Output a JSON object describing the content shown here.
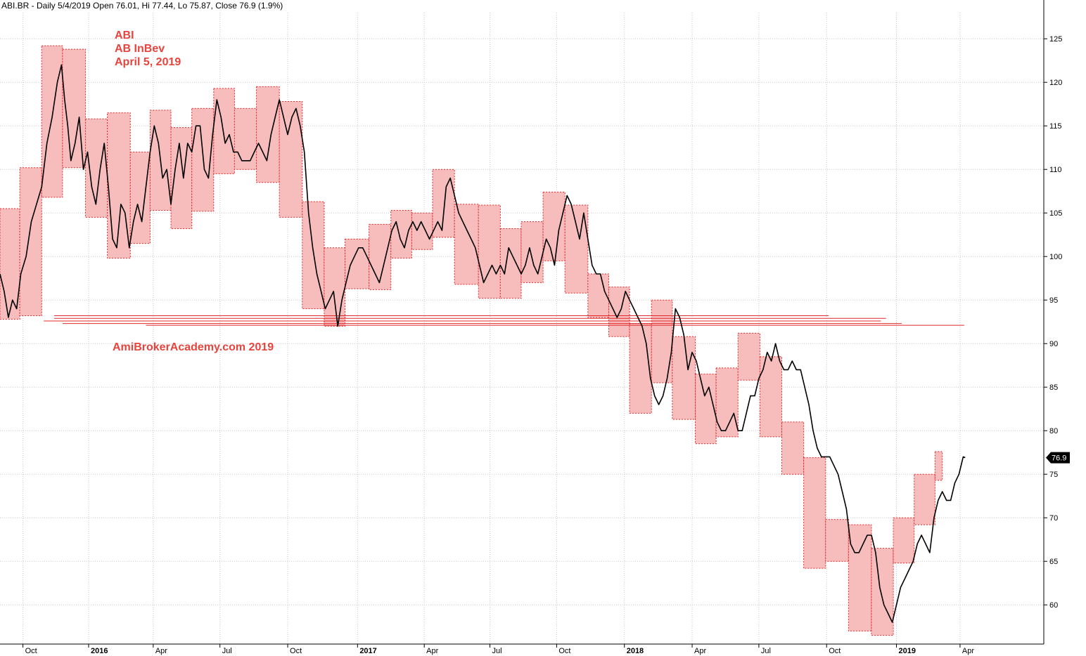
{
  "header": {
    "text": "ABI.BR - Daily 5/4/2019 Open 76.01, Hi 77.44, Lo 75.87, Close 76.9 (1.9%)"
  },
  "annotations": {
    "symbol": "ABI",
    "company": "AB InBev",
    "date": "April 5, 2019",
    "watermark": "AmiBrokerAcademy.com  2019"
  },
  "colors": {
    "box_fill": "#f7bcbc",
    "box_border": "#e0282a",
    "support_line": "#e0282a",
    "price": "#000000",
    "grid": "#c8c8c8"
  },
  "chart_data": {
    "type": "line",
    "title": "ABI.BR - Daily 5/4/2019 Open 76.01, Hi 77.44, Lo 75.87, Close 76.9 (1.9%)",
    "ylim": [
      55.5,
      128
    ],
    "xlim": [
      0,
      1000
    ],
    "y_ticks": [
      125,
      120,
      115,
      110,
      105,
      100,
      95,
      90,
      85,
      80,
      75,
      70,
      65,
      60
    ],
    "x_ticks": [
      {
        "label": "Oct",
        "x": 22,
        "year": false
      },
      {
        "label": "2016",
        "x": 85,
        "year": true
      },
      {
        "label": "Apr",
        "x": 147,
        "year": false
      },
      {
        "label": "Jul",
        "x": 211,
        "year": false
      },
      {
        "label": "Oct",
        "x": 276,
        "year": false
      },
      {
        "label": "2017",
        "x": 343,
        "year": true
      },
      {
        "label": "Apr",
        "x": 407,
        "year": false
      },
      {
        "label": "Jul",
        "x": 470,
        "year": false
      },
      {
        "label": "Oct",
        "x": 534,
        "year": false
      },
      {
        "label": "2018",
        "x": 599,
        "year": true
      },
      {
        "label": "Apr",
        "x": 664,
        "year": false
      },
      {
        "label": "Jul",
        "x": 728,
        "year": false
      },
      {
        "label": "Oct",
        "x": 793,
        "year": false
      },
      {
        "label": "2019",
        "x": 860,
        "year": true
      },
      {
        "label": "Apr",
        "x": 921,
        "year": false
      }
    ],
    "last_value": 76.9,
    "last_value_label": "76.9",
    "close": [
      [
        0,
        98
      ],
      [
        4,
        96
      ],
      [
        8,
        93
      ],
      [
        12,
        95
      ],
      [
        16,
        94
      ],
      [
        20,
        98
      ],
      [
        25,
        100
      ],
      [
        30,
        104
      ],
      [
        35,
        106
      ],
      [
        40,
        108
      ],
      [
        45,
        113
      ],
      [
        50,
        116
      ],
      [
        55,
        120
      ],
      [
        59,
        122
      ],
      [
        62,
        118
      ],
      [
        65,
        115
      ],
      [
        68,
        111
      ],
      [
        72,
        113
      ],
      [
        76,
        116
      ],
      [
        80,
        110
      ],
      [
        84,
        112
      ],
      [
        88,
        108
      ],
      [
        92,
        106
      ],
      [
        96,
        110
      ],
      [
        100,
        113
      ],
      [
        104,
        108
      ],
      [
        108,
        102
      ],
      [
        112,
        101
      ],
      [
        116,
        106
      ],
      [
        120,
        105
      ],
      [
        124,
        101
      ],
      [
        128,
        104
      ],
      [
        132,
        106
      ],
      [
        136,
        104
      ],
      [
        140,
        108
      ],
      [
        144,
        112
      ],
      [
        148,
        115
      ],
      [
        152,
        113
      ],
      [
        156,
        109
      ],
      [
        160,
        110
      ],
      [
        164,
        106
      ],
      [
        168,
        110
      ],
      [
        172,
        113
      ],
      [
        176,
        109
      ],
      [
        180,
        113
      ],
      [
        184,
        112
      ],
      [
        188,
        115
      ],
      [
        192,
        115
      ],
      [
        196,
        110
      ],
      [
        200,
        109
      ],
      [
        204,
        114
      ],
      [
        208,
        118
      ],
      [
        212,
        116
      ],
      [
        216,
        113
      ],
      [
        220,
        114
      ],
      [
        224,
        112
      ],
      [
        228,
        112
      ],
      [
        232,
        111
      ],
      [
        236,
        111
      ],
      [
        240,
        111
      ],
      [
        244,
        112
      ],
      [
        248,
        113
      ],
      [
        252,
        112
      ],
      [
        256,
        111
      ],
      [
        260,
        114
      ],
      [
        264,
        116
      ],
      [
        268,
        118
      ],
      [
        272,
        116
      ],
      [
        276,
        114
      ],
      [
        280,
        116
      ],
      [
        284,
        117
      ],
      [
        288,
        115
      ],
      [
        292,
        112
      ],
      [
        296,
        105
      ],
      [
        300,
        101
      ],
      [
        304,
        98
      ],
      [
        308,
        96
      ],
      [
        312,
        94
      ],
      [
        316,
        95
      ],
      [
        320,
        96
      ],
      [
        324,
        92
      ],
      [
        328,
        95
      ],
      [
        332,
        97
      ],
      [
        336,
        99
      ],
      [
        340,
        100
      ],
      [
        344,
        101
      ],
      [
        348,
        101
      ],
      [
        352,
        100
      ],
      [
        356,
        99
      ],
      [
        360,
        98
      ],
      [
        364,
        97
      ],
      [
        368,
        99
      ],
      [
        372,
        101
      ],
      [
        376,
        103
      ],
      [
        380,
        104
      ],
      [
        384,
        102
      ],
      [
        388,
        101
      ],
      [
        392,
        103
      ],
      [
        396,
        104
      ],
      [
        400,
        103
      ],
      [
        404,
        104
      ],
      [
        408,
        103
      ],
      [
        412,
        102
      ],
      [
        416,
        103
      ],
      [
        420,
        104
      ],
      [
        424,
        103
      ],
      [
        428,
        108
      ],
      [
        432,
        109
      ],
      [
        436,
        107
      ],
      [
        440,
        105
      ],
      [
        444,
        104
      ],
      [
        448,
        103
      ],
      [
        452,
        102
      ],
      [
        456,
        101
      ],
      [
        460,
        99
      ],
      [
        464,
        97
      ],
      [
        468,
        98
      ],
      [
        472,
        99
      ],
      [
        476,
        98
      ],
      [
        480,
        99
      ],
      [
        484,
        98
      ],
      [
        488,
        101
      ],
      [
        492,
        100
      ],
      [
        496,
        99
      ],
      [
        500,
        98
      ],
      [
        504,
        99
      ],
      [
        508,
        101
      ],
      [
        512,
        99
      ],
      [
        516,
        98
      ],
      [
        520,
        100
      ],
      [
        524,
        102
      ],
      [
        528,
        101
      ],
      [
        532,
        99
      ],
      [
        536,
        103
      ],
      [
        540,
        105
      ],
      [
        544,
        107
      ],
      [
        548,
        106
      ],
      [
        552,
        104
      ],
      [
        556,
        102
      ],
      [
        560,
        105
      ],
      [
        564,
        102
      ],
      [
        568,
        99
      ],
      [
        572,
        98
      ],
      [
        576,
        98
      ],
      [
        580,
        96
      ],
      [
        584,
        95
      ],
      [
        588,
        94
      ],
      [
        592,
        93
      ],
      [
        596,
        94
      ],
      [
        600,
        96
      ],
      [
        604,
        95
      ],
      [
        608,
        94
      ],
      [
        612,
        93
      ],
      [
        616,
        92
      ],
      [
        620,
        90
      ],
      [
        624,
        86
      ],
      [
        628,
        84
      ],
      [
        632,
        83
      ],
      [
        636,
        84
      ],
      [
        640,
        86
      ],
      [
        644,
        89
      ],
      [
        648,
        94
      ],
      [
        652,
        93
      ],
      [
        656,
        91
      ],
      [
        660,
        87
      ],
      [
        664,
        89
      ],
      [
        668,
        88
      ],
      [
        672,
        86
      ],
      [
        676,
        84
      ],
      [
        680,
        85
      ],
      [
        684,
        83
      ],
      [
        688,
        81
      ],
      [
        692,
        80
      ],
      [
        696,
        80
      ],
      [
        700,
        81
      ],
      [
        704,
        82
      ],
      [
        708,
        80
      ],
      [
        712,
        80
      ],
      [
        716,
        82
      ],
      [
        720,
        84
      ],
      [
        724,
        84
      ],
      [
        728,
        86
      ],
      [
        732,
        87
      ],
      [
        736,
        89
      ],
      [
        740,
        88
      ],
      [
        744,
        90
      ],
      [
        748,
        88
      ],
      [
        752,
        87
      ],
      [
        756,
        87
      ],
      [
        760,
        88
      ],
      [
        764,
        87
      ],
      [
        768,
        87
      ],
      [
        772,
        85
      ],
      [
        776,
        83
      ],
      [
        780,
        80
      ],
      [
        784,
        78
      ],
      [
        788,
        77
      ],
      [
        792,
        77
      ],
      [
        796,
        77
      ],
      [
        800,
        76
      ],
      [
        804,
        75
      ],
      [
        808,
        73
      ],
      [
        812,
        71
      ],
      [
        816,
        67
      ],
      [
        820,
        66
      ],
      [
        824,
        66
      ],
      [
        828,
        67
      ],
      [
        832,
        68
      ],
      [
        836,
        68
      ],
      [
        840,
        66
      ],
      [
        844,
        62
      ],
      [
        848,
        60
      ],
      [
        852,
        59
      ],
      [
        856,
        58
      ],
      [
        860,
        60
      ],
      [
        864,
        62
      ],
      [
        868,
        63
      ],
      [
        872,
        64
      ],
      [
        876,
        65
      ],
      [
        880,
        67
      ],
      [
        884,
        68
      ],
      [
        888,
        67
      ],
      [
        892,
        66
      ],
      [
        896,
        70
      ],
      [
        900,
        72
      ],
      [
        904,
        73
      ],
      [
        908,
        72
      ],
      [
        912,
        72
      ],
      [
        916,
        74
      ],
      [
        920,
        75
      ],
      [
        924,
        77
      ],
      [
        926,
        76.9
      ]
    ],
    "boxes": [
      [
        0,
        19,
        92.8,
        105.5
      ],
      [
        19,
        40,
        93.2,
        110.2
      ],
      [
        40,
        60,
        106.8,
        124.2
      ],
      [
        60,
        82,
        110.2,
        123.8
      ],
      [
        82,
        103,
        104.5,
        115.8
      ],
      [
        103,
        125,
        99.8,
        116.5
      ],
      [
        125,
        144,
        101.5,
        112.0
      ],
      [
        144,
        164,
        105.3,
        116.8
      ],
      [
        164,
        184,
        103.2,
        114.8
      ],
      [
        184,
        205,
        105.2,
        117.0
      ],
      [
        205,
        225,
        109.5,
        119.3
      ],
      [
        225,
        246,
        110.0,
        117.0
      ],
      [
        246,
        268,
        108.5,
        119.5
      ],
      [
        268,
        290,
        104.5,
        117.8
      ],
      [
        290,
        311,
        94.0,
        106.3
      ],
      [
        311,
        331,
        92.0,
        101.0
      ],
      [
        331,
        354,
        96.3,
        102.0
      ],
      [
        354,
        375,
        96.2,
        103.7
      ],
      [
        375,
        395,
        99.8,
        105.3
      ],
      [
        395,
        415,
        100.8,
        105.0
      ],
      [
        415,
        436,
        102.2,
        110.0
      ],
      [
        436,
        459,
        96.8,
        106.0
      ],
      [
        459,
        480,
        95.2,
        105.9
      ],
      [
        480,
        500,
        95.2,
        103.2
      ],
      [
        500,
        521,
        97.0,
        104.0
      ],
      [
        521,
        542,
        99.5,
        107.4
      ],
      [
        542,
        564,
        95.8,
        105.9
      ],
      [
        564,
        584,
        93.0,
        98.0
      ],
      [
        584,
        604,
        90.8,
        96.5
      ],
      [
        604,
        625,
        82.0,
        92.3
      ],
      [
        625,
        645,
        85.5,
        95.0
      ],
      [
        645,
        667,
        81.3,
        90.8
      ],
      [
        667,
        687,
        78.5,
        86.5
      ],
      [
        687,
        708,
        79.3,
        87.2
      ],
      [
        708,
        729,
        85.8,
        91.2
      ],
      [
        729,
        750,
        79.3,
        88.5
      ],
      [
        750,
        771,
        75.0,
        81.0
      ],
      [
        771,
        792,
        64.2,
        76.9
      ],
      [
        792,
        814,
        65.0,
        69.8
      ],
      [
        814,
        836,
        57.0,
        69.2
      ],
      [
        836,
        857,
        56.5,
        66.5
      ],
      [
        857,
        877,
        64.8,
        70.0
      ],
      [
        877,
        897,
        69.2,
        75.0
      ],
      [
        897,
        904,
        74.3,
        77.6
      ]
    ],
    "support_lines": [
      [
        52,
        795,
        93.2
      ],
      [
        52,
        850,
        92.9
      ],
      [
        42,
        845,
        92.6
      ],
      [
        60,
        865,
        92.3
      ],
      [
        140,
        925,
        92.1
      ]
    ]
  }
}
